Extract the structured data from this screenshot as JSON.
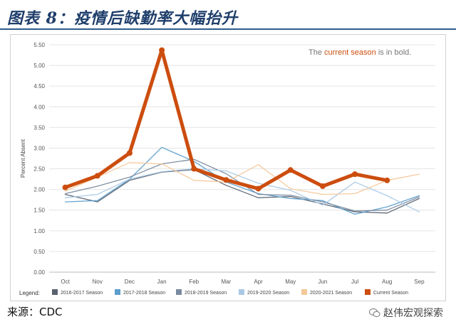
{
  "header": {
    "title": "图表 8：疫情后缺勤率大幅抬升"
  },
  "footer": {
    "source": "来源：CDC",
    "watermark": "赵伟宏观探索"
  },
  "colors": {
    "current": "#cc4d0e",
    "s2016": "#5a6270",
    "s2017": "#5b9ecb",
    "s2018": "#7a8aa0",
    "s2019": "#a9c9e6",
    "s2020": "#f5c89a"
  },
  "chart_data": {
    "type": "line",
    "ylabel": "Percent Absent",
    "xlabel": "",
    "ylim": [
      0,
      5.5
    ],
    "yticks": [
      "0.00",
      "0.50",
      "1.00",
      "1.50",
      "2.00",
      "2.50",
      "3.00",
      "3.50",
      "4.00",
      "4.50",
      "5.00",
      "5.50"
    ],
    "categories": [
      "Oct",
      "Nov",
      "Dec",
      "Jan",
      "Feb",
      "Mar",
      "Apr",
      "May",
      "Jun",
      "Jul",
      "Aug",
      "Sep"
    ],
    "annotation": {
      "prefix": "The ",
      "highlight": "current season",
      "suffix": " is in bold."
    },
    "legend_title": "Legend:",
    "grid": true,
    "series": [
      {
        "name": "2016-2017 Season",
        "color_key": "s2016",
        "bold": false,
        "values": [
          1.88,
          1.7,
          2.22,
          2.42,
          2.48,
          2.1,
          1.8,
          1.83,
          1.65,
          1.46,
          1.43,
          1.78
        ]
      },
      {
        "name": "2017-2018 Season",
        "color_key": "s2017",
        "bold": false,
        "values": [
          1.7,
          1.73,
          2.25,
          3.02,
          2.68,
          2.18,
          1.9,
          1.78,
          1.73,
          1.4,
          1.58,
          1.85
        ]
      },
      {
        "name": "2018-2019 Season",
        "color_key": "s2018",
        "bold": false,
        "values": [
          1.9,
          2.08,
          2.3,
          2.62,
          2.73,
          2.38,
          1.88,
          1.86,
          1.7,
          1.48,
          1.5,
          1.82
        ]
      },
      {
        "name": "2019-2020 Season",
        "color_key": "s2019",
        "bold": false,
        "values": [
          1.8,
          1.88,
          2.25,
          2.43,
          2.5,
          2.45,
          2.15,
          1.98,
          1.62,
          2.18,
          1.85,
          1.46
        ]
      },
      {
        "name": "2020-2021 Season",
        "color_key": "s2020",
        "bold": false,
        "values": [
          1.96,
          2.3,
          2.65,
          2.62,
          2.22,
          2.18,
          2.6,
          2.02,
          1.88,
          1.9,
          2.22,
          2.37
        ]
      },
      {
        "name": "Current Season",
        "color_key": "current",
        "bold": true,
        "values": [
          2.05,
          2.33,
          2.88,
          5.37,
          2.5,
          2.23,
          2.02,
          2.47,
          2.08,
          2.37,
          2.22,
          null
        ]
      }
    ]
  }
}
